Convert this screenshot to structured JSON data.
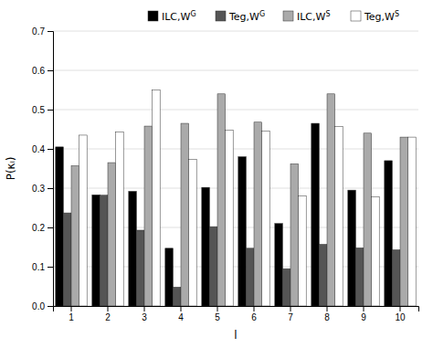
{
  "chart_data": {
    "type": "bar",
    "xlabel": "l",
    "ylabel": "P(κₗ)",
    "categories": [
      1,
      2,
      3,
      4,
      5,
      6,
      7,
      8,
      9,
      10
    ],
    "series": [
      {
        "name": "ILC,WG",
        "color": "#000000",
        "values": [
          0.405,
          0.283,
          0.292,
          0.147,
          0.302,
          0.38,
          0.21,
          0.465,
          0.295,
          0.37
        ]
      },
      {
        "name": "Teg,WG",
        "color": "#555555",
        "values": [
          0.237,
          0.282,
          0.193,
          0.048,
          0.202,
          0.147,
          0.095,
          0.157,
          0.148,
          0.143
        ]
      },
      {
        "name": "ILC,WS",
        "color": "#aaaaaa",
        "values": [
          0.357,
          0.365,
          0.458,
          0.465,
          0.54,
          0.468,
          0.362,
          0.54,
          0.44,
          0.43
        ]
      },
      {
        "name": "Teg,WS",
        "color": "#ffffff",
        "values": [
          0.435,
          0.443,
          0.55,
          0.373,
          0.448,
          0.445,
          0.28,
          0.457,
          0.278,
          0.43
        ]
      }
    ],
    "ylim": [
      0.0,
      0.7
    ],
    "yticks": [
      {
        "value": 0.0,
        "label": "0.0"
      },
      0.1,
      0.2,
      0.3,
      0.4,
      0.5,
      0.6,
      0.7
    ],
    "grid": true,
    "legend": "upper right"
  }
}
